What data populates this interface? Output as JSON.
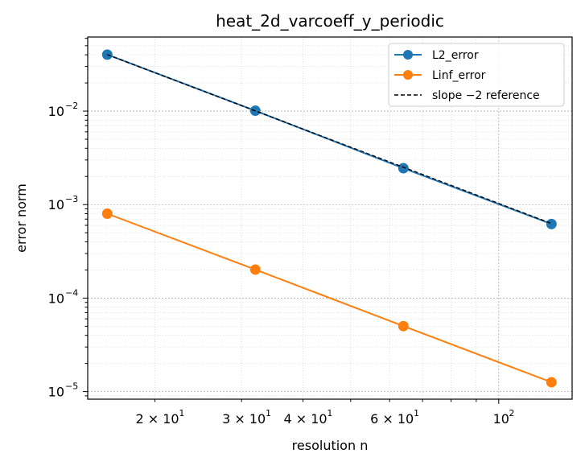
{
  "chart_data": {
    "type": "line",
    "title": "heat_2d_varcoeff_y_periodic",
    "xlabel": "resolution n",
    "ylabel": "error norm",
    "xscale": "log",
    "yscale": "log",
    "xlim": [
      14.6,
      141
    ],
    "ylim": [
      8.3e-06,
      0.062
    ],
    "grid": true,
    "legend_position": "top-right",
    "x": [
      16,
      32,
      64,
      128
    ],
    "x_tick_labels": [
      {
        "v": 20,
        "label": "2 × 10",
        "exp": "1"
      },
      {
        "v": 30,
        "label": "3 × 10",
        "exp": "1"
      },
      {
        "v": 40,
        "label": "4 × 10",
        "exp": "1"
      },
      {
        "v": 60,
        "label": "6 × 10",
        "exp": "1"
      },
      {
        "v": 100,
        "label": "10",
        "exp": "2"
      }
    ],
    "y_tick_labels": [
      {
        "v": 1e-05,
        "label": "10",
        "exp": "−5"
      },
      {
        "v": 0.0001,
        "label": "10",
        "exp": "−4"
      },
      {
        "v": 0.001,
        "label": "10",
        "exp": "−3"
      },
      {
        "v": 0.01,
        "label": "10",
        "exp": "−2"
      }
    ],
    "series": [
      {
        "name": "L2_error",
        "color": "#1f77b4",
        "style": "line-marker",
        "values": [
          0.0402,
          0.0101,
          0.00245,
          0.00062
        ]
      },
      {
        "name": "Linf_error",
        "color": "#ff7f0e",
        "style": "line-marker",
        "values": [
          0.0008,
          0.000202,
          5.02e-05,
          1.26e-05
        ]
      },
      {
        "name": "slope −2 reference",
        "color": "#000000",
        "style": "dashed",
        "values": [
          0.0402,
          0.01005,
          0.0025125,
          0.000628
        ]
      }
    ]
  }
}
